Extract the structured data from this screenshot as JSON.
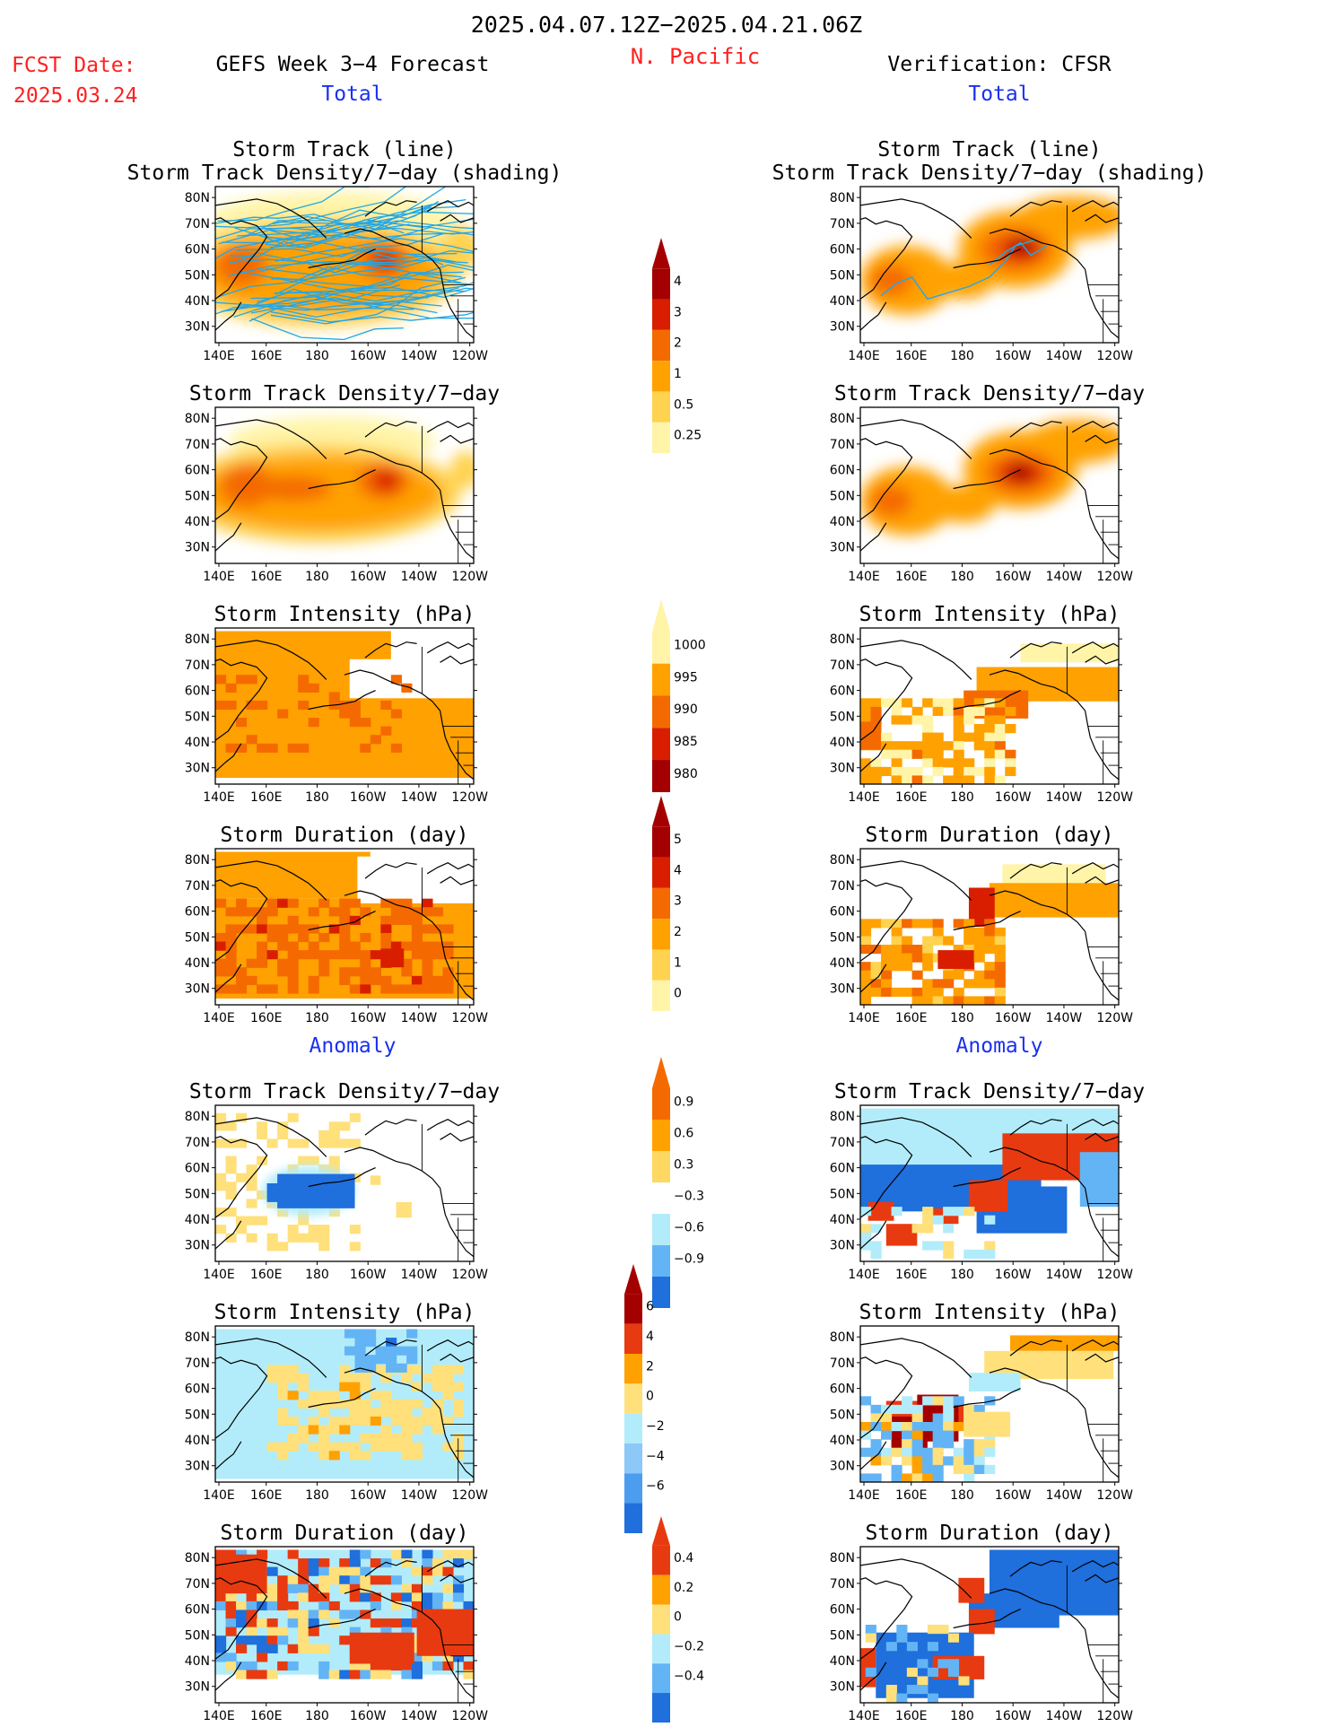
{
  "header": {
    "date_range": "2025.04.07.12Z−2025.04.21.06Z",
    "region": "N. Pacific",
    "fcst_label": "FCST Date:",
    "fcst_date": "2025.03.24",
    "left_title": "GEFS Week 3−4 Forecast",
    "right_title": "Verification: CFSR",
    "total_label": "Total",
    "anomaly_label": "Anomaly"
  },
  "titles": {
    "track_line": "Storm Track (line)",
    "track_shading": "Storm Track Density/7−day (shading)",
    "density": "Storm Track Density/7−day",
    "intensity": "Storm Intensity (hPa)",
    "duration": "Storm Duration (day)"
  },
  "axes": {
    "lat_labels": [
      "80N",
      "70N",
      "60N",
      "50N",
      "40N",
      "30N"
    ],
    "lon_labels": [
      "140E",
      "160E",
      "180",
      "160W",
      "140W",
      "120W"
    ]
  },
  "colorbars": [
    {
      "id": "density",
      "labels": [
        "4",
        "3",
        "2",
        "1",
        "0.5",
        "0.25"
      ],
      "colors": [
        "#a50000",
        "#d91e00",
        "#f46a00",
        "#ffa100",
        "#ffd24f",
        "#fff4a8"
      ]
    },
    {
      "id": "intensity",
      "labels": [
        "1000",
        "995",
        "990",
        "985",
        "980"
      ],
      "colors": [
        "#fff4a8",
        "#ffa100",
        "#f46a00",
        "#d91e00",
        "#a50000"
      ]
    },
    {
      "id": "duration",
      "labels": [
        "5",
        "4",
        "3",
        "2",
        "1",
        "0"
      ],
      "colors": [
        "#a50000",
        "#d91e00",
        "#f46a00",
        "#ffa100",
        "#ffd24f",
        "#fff4a8"
      ]
    },
    {
      "id": "density-anom",
      "labels": [
        "0.9",
        "0.6",
        "0.3",
        "−0.3",
        "−0.6",
        "−0.9"
      ],
      "colors": [
        "#f46a00",
        "#ffa100",
        "#ffd862",
        "#ffffff",
        "#b2ecfa",
        "#63b4f5",
        "#1f6fdc"
      ]
    },
    {
      "id": "intensity-anom",
      "labels": [
        "6",
        "4",
        "2",
        "0",
        "−2",
        "−4",
        "−6"
      ],
      "colors": [
        "#a50000",
        "#e83a10",
        "#ffa100",
        "#ffe07a",
        "#b2ecfa",
        "#8cc8f8",
        "#4b9df0",
        "#1f6fdc"
      ]
    },
    {
      "id": "duration-anom",
      "labels": [
        "0.4",
        "0.2",
        "0",
        "−0.2",
        "−0.4"
      ],
      "colors": [
        "#e83a10",
        "#ffa100",
        "#ffe07a",
        "#b2ecfa",
        "#63b4f5",
        "#1f6fdc"
      ]
    }
  ],
  "colors": {
    "title_red": "#ff2020",
    "label_blue": "#1a30f0",
    "track_line": "#23a7e6",
    "coast": "#000000"
  }
}
